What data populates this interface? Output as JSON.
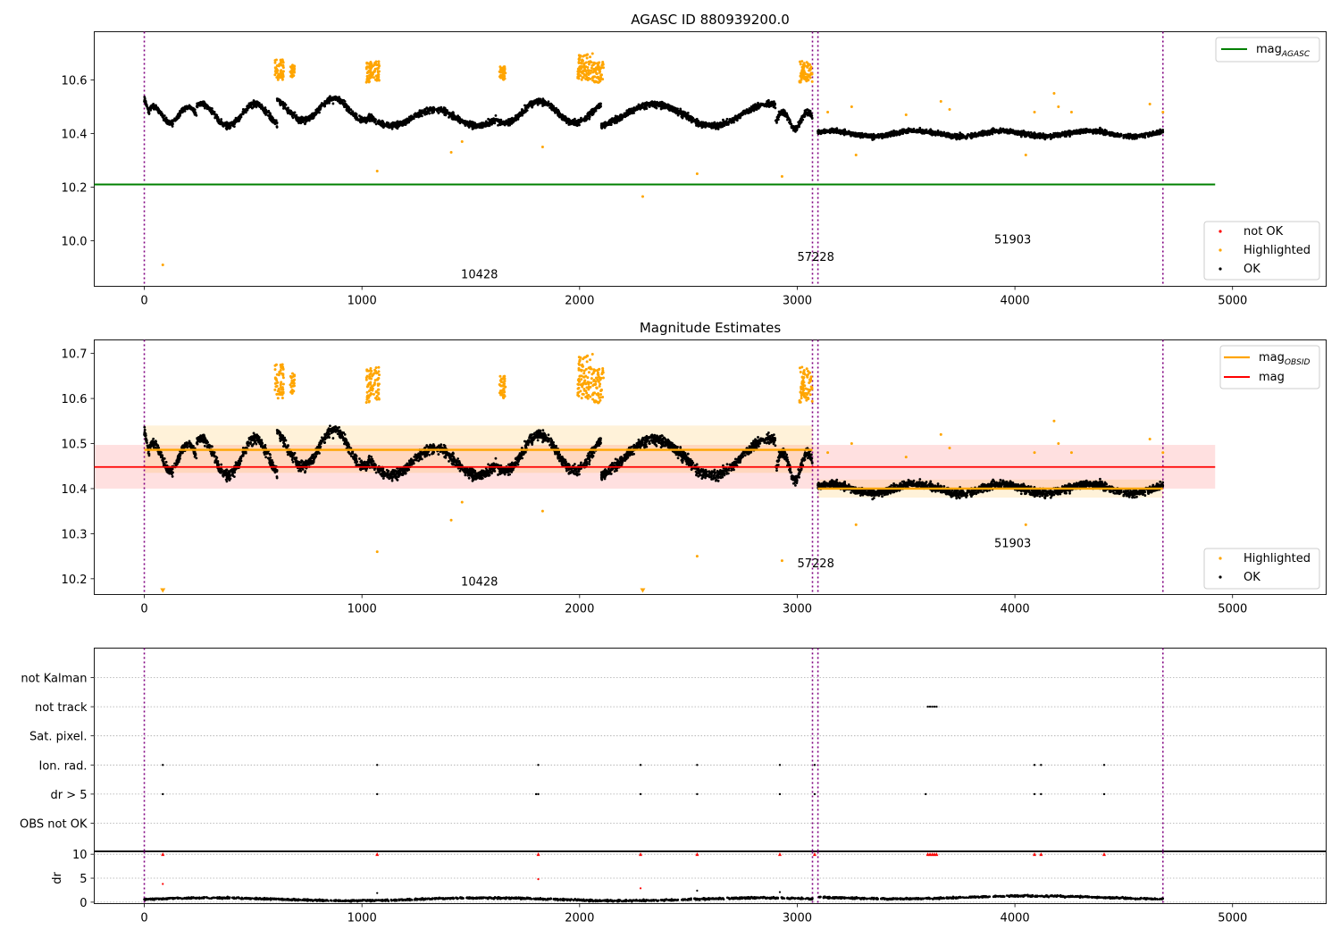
{
  "chart_data": [
    {
      "type": "scatter",
      "title": "AGASC ID 880939200.0",
      "xlim": [
        -230,
        5430
      ],
      "ylim": [
        9.83,
        10.78
      ],
      "xticks": [
        0,
        1000,
        2000,
        3000,
        4000,
        5000
      ],
      "yticks": [
        10.0,
        10.2,
        10.4,
        10.6
      ],
      "legend_upper": [
        {
          "name": "mag",
          "sub": "AGASC",
          "color": "#008000",
          "kind": "line"
        }
      ],
      "legend_lower": [
        {
          "name": "not OK",
          "color": "#ff0000",
          "kind": "dot"
        },
        {
          "name": "Highlighted",
          "color": "#ffa500",
          "kind": "dot"
        },
        {
          "name": "OK",
          "color": "#000000",
          "kind": "dot"
        }
      ],
      "agasc_mag": {
        "value": 10.21,
        "x": [
          -230,
          4920
        ]
      },
      "obs_boundaries": [
        0,
        3070,
        3095,
        4680
      ],
      "obsid_labels": [
        {
          "text": "10428",
          "x": 1540,
          "y": 9.86
        },
        {
          "text": "57228",
          "x": 3085,
          "y": 9.925
        },
        {
          "text": "51903",
          "x": 3990,
          "y": 9.99
        }
      ],
      "ok_segments": [
        {
          "x0": 0,
          "x1": 240,
          "level": 10.47,
          "start": 10.53,
          "amp": 0.03,
          "width": 0.035
        },
        {
          "x0": 240,
          "x1": 610,
          "level": 10.47,
          "amp": 0.04,
          "width": 0.04
        },
        {
          "x0": 610,
          "x1": 1030,
          "level": 10.49,
          "amp": 0.04,
          "width": 0.04
        },
        {
          "x0": 1030,
          "x1": 1620,
          "level": 10.46,
          "amp": 0.03,
          "width": 0.04
        },
        {
          "x0": 1620,
          "x1": 2100,
          "level": 10.48,
          "amp": 0.04,
          "width": 0.04
        },
        {
          "x0": 2100,
          "x1": 2900,
          "level": 10.47,
          "amp": 0.04,
          "width": 0.04
        },
        {
          "x0": 2900,
          "x1": 3070,
          "level": 10.45,
          "amp": 0.03,
          "width": 0.035
        },
        {
          "x0": 3095,
          "x1": 4680,
          "level": 10.4,
          "amp": 0.01,
          "width": 0.03
        }
      ],
      "highlight_clusters": [
        {
          "x0": 600,
          "x1": 640,
          "y0": 10.6,
          "y1": 10.68
        },
        {
          "x0": 670,
          "x1": 690,
          "y0": 10.61,
          "y1": 10.66
        },
        {
          "x0": 1020,
          "x1": 1080,
          "y0": 10.59,
          "y1": 10.67
        },
        {
          "x0": 1630,
          "x1": 1660,
          "y0": 10.6,
          "y1": 10.65
        },
        {
          "x0": 1990,
          "x1": 2060,
          "y0": 10.6,
          "y1": 10.7
        },
        {
          "x0": 2060,
          "x1": 2110,
          "y0": 10.59,
          "y1": 10.67
        },
        {
          "x0": 3010,
          "x1": 3070,
          "y0": 10.59,
          "y1": 10.67
        }
      ],
      "highlight_points": [
        [
          85,
          9.91
        ],
        [
          1070,
          10.26
        ],
        [
          1410,
          10.33
        ],
        [
          1460,
          10.37
        ],
        [
          1830,
          10.35
        ],
        [
          2290,
          10.165
        ],
        [
          2540,
          10.25
        ],
        [
          2930,
          10.24
        ],
        [
          3140,
          10.48
        ],
        [
          3250,
          10.5
        ],
        [
          3270,
          10.32
        ],
        [
          3500,
          10.47
        ],
        [
          3660,
          10.52
        ],
        [
          3700,
          10.49
        ],
        [
          4050,
          10.32
        ],
        [
          4090,
          10.48
        ],
        [
          4180,
          10.55
        ],
        [
          4200,
          10.5
        ],
        [
          4260,
          10.48
        ],
        [
          4620,
          10.51
        ],
        [
          4680,
          10.48
        ]
      ]
    },
    {
      "type": "scatter",
      "title": "Magnitude Estimates",
      "xlim": [
        -230,
        5430
      ],
      "ylim": [
        10.165,
        10.73
      ],
      "xticks": [
        0,
        1000,
        2000,
        3000,
        4000,
        5000
      ],
      "yticks": [
        10.2,
        10.3,
        10.4,
        10.5,
        10.6,
        10.7
      ],
      "legend_upper": [
        {
          "name": "mag",
          "sub": "OBSID",
          "color": "#ffa500",
          "kind": "line"
        },
        {
          "name": "mag",
          "sub": "",
          "color": "#ff0000",
          "kind": "line"
        }
      ],
      "legend_lower": [
        {
          "name": "Highlighted",
          "color": "#ffa500",
          "kind": "dot"
        },
        {
          "name": "OK",
          "color": "#000000",
          "kind": "dot"
        }
      ],
      "mag": {
        "value": 10.448,
        "band": [
          10.4,
          10.497
        ],
        "x": [
          -230,
          4920
        ]
      },
      "obsid_mags": [
        {
          "x0": 0,
          "x1": 3070,
          "value": 10.486,
          "band": [
            10.435,
            10.54
          ]
        },
        {
          "x0": 3095,
          "x1": 4680,
          "value": 10.4,
          "band": [
            10.38,
            10.42
          ]
        }
      ],
      "obs_boundaries": [
        0,
        3070,
        3095,
        4680
      ],
      "obsid_labels": [
        {
          "text": "10428",
          "x": 1540,
          "y": 10.185
        },
        {
          "text": "57228",
          "x": 3085,
          "y": 10.225
        },
        {
          "text": "51903",
          "x": 3990,
          "y": 10.27
        }
      ],
      "arrow_markers": [
        [
          85,
          10.17
        ],
        [
          2290,
          10.17
        ]
      ]
    },
    {
      "type": "scatter",
      "title": "",
      "xlim": [
        -230,
        5430
      ],
      "xticks": [
        0,
        1000,
        2000,
        3000,
        4000,
        5000
      ],
      "flag_rows": [
        "not Kalman",
        "not track",
        "Sat. pixel.",
        "Ion. rad.",
        "dr > 5",
        "OBS not OK"
      ],
      "flag_points": {
        "not track": [
          3600,
          3610,
          3620,
          3630,
          3640
        ],
        "Ion. rad.": [
          85,
          1070,
          1810,
          2280,
          2540,
          2920,
          3080,
          4090,
          4120,
          4410
        ],
        "dr > 5": [
          85,
          1070,
          1800,
          1810,
          2280,
          2540,
          2920,
          3080,
          3590,
          4090,
          4120,
          4410
        ]
      },
      "dr": {
        "ylabel": "dr",
        "ylim": [
          -0.3,
          10.5
        ],
        "yticks": [
          0,
          5,
          10
        ],
        "capped_points": [
          85,
          1070,
          1810,
          2280,
          2540,
          2920,
          3080,
          3600,
          3610,
          3620,
          3630,
          3640,
          4090,
          4120,
          4410
        ],
        "mid_points": [
          [
            85,
            3.8
          ],
          [
            1810,
            4.8
          ],
          [
            2280,
            2.9
          ],
          [
            2540,
            2.4
          ],
          [
            2920,
            2.1
          ],
          [
            1070,
            1.9
          ]
        ]
      }
    }
  ]
}
